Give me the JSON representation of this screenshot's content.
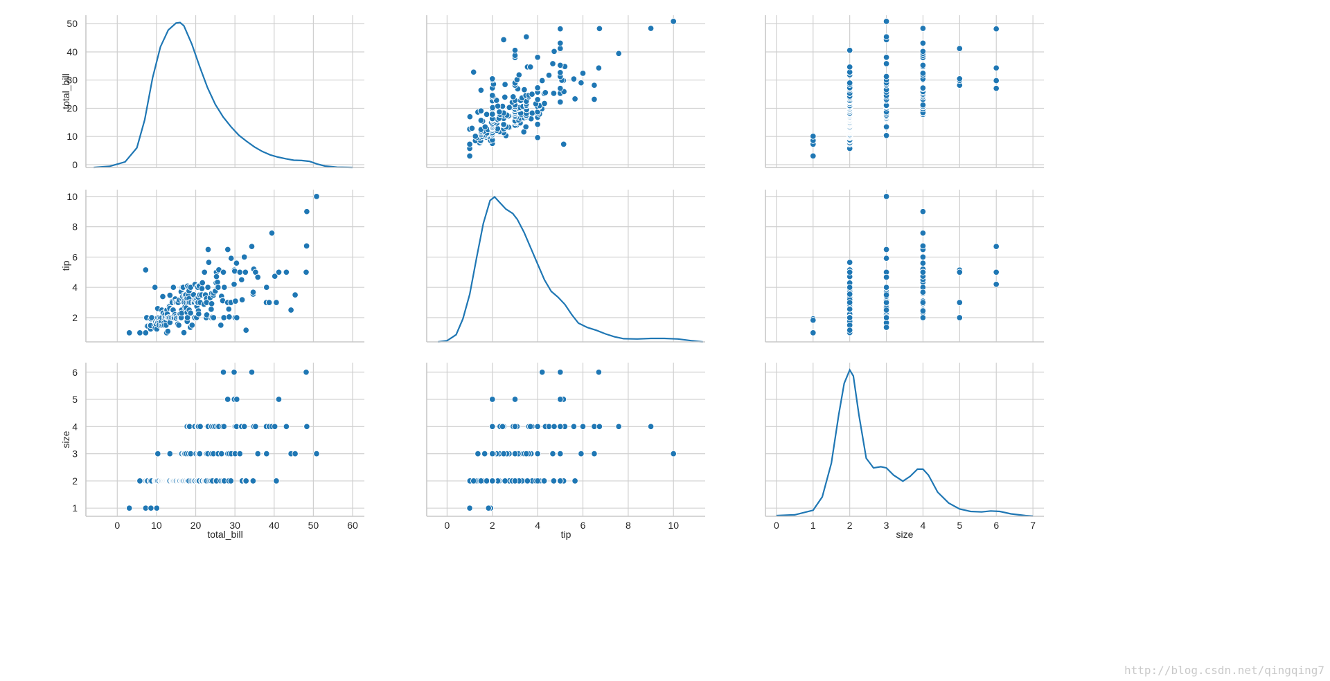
{
  "watermark": "http://blog.csdn.net/qingqing7",
  "chart_data": {
    "type": "pairplot",
    "variables": [
      "total_bill",
      "tip",
      "size"
    ],
    "color": "#1f77b4",
    "style": "whitegrid",
    "grid": true,
    "axes": {
      "total_bill": {
        "label": "total_bill",
        "lim": [
          -8,
          63
        ],
        "ticks": [
          0,
          10,
          20,
          30,
          40,
          50,
          60
        ]
      },
      "tip": {
        "label": "tip",
        "lim": [
          -0.9,
          11.4
        ],
        "ticks": [
          0,
          2,
          4,
          6,
          8,
          10
        ]
      },
      "size": {
        "label": "size",
        "lim": [
          -0.3,
          7.3
        ],
        "ticks": [
          0,
          1,
          2,
          3,
          4,
          5,
          6,
          7
        ]
      }
    },
    "row_axes": {
      "total_bill": {
        "label": "total_bill",
        "lim": [
          -1,
          53
        ],
        "ticks": [
          0,
          10,
          20,
          30,
          40,
          50
        ]
      },
      "tip": {
        "label": "tip",
        "lim": [
          0.4,
          10.45
        ],
        "ticks": [
          2,
          4,
          6,
          8,
          10
        ]
      },
      "size": {
        "label": "size",
        "lim": [
          0.7,
          6.35
        ],
        "ticks": [
          1,
          2,
          3,
          4,
          5,
          6
        ]
      }
    },
    "kde": {
      "total_bill": [
        [
          -6,
          0
        ],
        [
          -2,
          0.4
        ],
        [
          2,
          2
        ],
        [
          5,
          7
        ],
        [
          7,
          17
        ],
        [
          9,
          32
        ],
        [
          11,
          43
        ],
        [
          13,
          49
        ],
        [
          15,
          51.5
        ],
        [
          16,
          51.7
        ],
        [
          17,
          50.5
        ],
        [
          19,
          44
        ],
        [
          21,
          36
        ],
        [
          23,
          28.5
        ],
        [
          25,
          22.5
        ],
        [
          27,
          18
        ],
        [
          29,
          14.5
        ],
        [
          31,
          11.5
        ],
        [
          33,
          9.3
        ],
        [
          35,
          7.3
        ],
        [
          37,
          5.7
        ],
        [
          39,
          4.5
        ],
        [
          41,
          3.7
        ],
        [
          43,
          3.1
        ],
        [
          45,
          2.6
        ],
        [
          47,
          2.5
        ],
        [
          49,
          2.2
        ],
        [
          51,
          1.2
        ],
        [
          53,
          0.5
        ],
        [
          56,
          0.1
        ],
        [
          60,
          0
        ]
      ],
      "tip": [
        [
          -0.4,
          0
        ],
        [
          0,
          0.08
        ],
        [
          0.4,
          0.5
        ],
        [
          0.7,
          1.6
        ],
        [
          1.0,
          3.3
        ],
        [
          1.3,
          5.8
        ],
        [
          1.6,
          8.2
        ],
        [
          1.9,
          9.8
        ],
        [
          2.1,
          10.05
        ],
        [
          2.3,
          9.7
        ],
        [
          2.6,
          9.2
        ],
        [
          2.9,
          8.9
        ],
        [
          3.1,
          8.5
        ],
        [
          3.4,
          7.6
        ],
        [
          3.7,
          6.5
        ],
        [
          4.0,
          5.4
        ],
        [
          4.3,
          4.3
        ],
        [
          4.6,
          3.5
        ],
        [
          4.9,
          3.1
        ],
        [
          5.2,
          2.6
        ],
        [
          5.5,
          1.9
        ],
        [
          5.8,
          1.3
        ],
        [
          6.2,
          1.0
        ],
        [
          6.6,
          0.8
        ],
        [
          7.0,
          0.55
        ],
        [
          7.4,
          0.35
        ],
        [
          7.8,
          0.22
        ],
        [
          8.4,
          0.2
        ],
        [
          9.0,
          0.24
        ],
        [
          9.6,
          0.24
        ],
        [
          10.2,
          0.2
        ],
        [
          10.8,
          0.08
        ],
        [
          11.3,
          0
        ]
      ],
      "size": [
        [
          0,
          0.03
        ],
        [
          0.5,
          0.06
        ],
        [
          1.0,
          0.25
        ],
        [
          1.25,
          0.8
        ],
        [
          1.5,
          2.2
        ],
        [
          1.7,
          4.2
        ],
        [
          1.85,
          5.5
        ],
        [
          2.0,
          6.05
        ],
        [
          2.1,
          5.8
        ],
        [
          2.25,
          4.2
        ],
        [
          2.45,
          2.4
        ],
        [
          2.65,
          2.0
        ],
        [
          2.85,
          2.05
        ],
        [
          3.0,
          2.0
        ],
        [
          3.2,
          1.7
        ],
        [
          3.45,
          1.45
        ],
        [
          3.65,
          1.65
        ],
        [
          3.85,
          1.95
        ],
        [
          4.0,
          1.95
        ],
        [
          4.15,
          1.7
        ],
        [
          4.4,
          1.0
        ],
        [
          4.7,
          0.55
        ],
        [
          5.0,
          0.3
        ],
        [
          5.3,
          0.2
        ],
        [
          5.6,
          0.18
        ],
        [
          5.85,
          0.22
        ],
        [
          6.1,
          0.2
        ],
        [
          6.4,
          0.1
        ],
        [
          6.8,
          0.03
        ],
        [
          7.0,
          0.01
        ]
      ]
    },
    "points": [
      [
        3.07,
        1.0,
        1
      ],
      [
        5.75,
        1.0,
        2
      ],
      [
        7.25,
        1.0,
        1
      ],
      [
        7.25,
        5.15,
        2
      ],
      [
        7.51,
        2.0,
        2
      ],
      [
        7.56,
        1.44,
        2
      ],
      [
        7.74,
        1.44,
        2
      ],
      [
        8.35,
        1.5,
        2
      ],
      [
        8.51,
        1.25,
        2
      ],
      [
        8.52,
        1.48,
        2
      ],
      [
        8.58,
        1.92,
        1
      ],
      [
        8.77,
        2.0,
        2
      ],
      [
        9.55,
        1.45,
        2
      ],
      [
        9.6,
        4.0,
        2
      ],
      [
        9.68,
        1.32,
        2
      ],
      [
        9.78,
        1.73,
        2
      ],
      [
        9.94,
        1.56,
        2
      ],
      [
        10.07,
        1.25,
        2
      ],
      [
        10.07,
        1.83,
        1
      ],
      [
        10.27,
        1.71,
        2
      ],
      [
        10.29,
        2.6,
        2
      ],
      [
        10.33,
        1.67,
        3
      ],
      [
        10.34,
        1.66,
        3
      ],
      [
        10.34,
        2.0,
        2
      ],
      [
        10.59,
        1.61,
        2
      ],
      [
        10.63,
        2.0,
        2
      ],
      [
        10.65,
        1.5,
        2
      ],
      [
        11.02,
        1.98,
        2
      ],
      [
        11.17,
        1.5,
        2
      ],
      [
        11.24,
        1.76,
        2
      ],
      [
        11.35,
        2.5,
        2
      ],
      [
        11.38,
        2.0,
        2
      ],
      [
        11.59,
        1.5,
        2
      ],
      [
        11.61,
        3.39,
        2
      ],
      [
        11.69,
        2.31,
        2
      ],
      [
        11.87,
        1.63,
        2
      ],
      [
        12.02,
        1.97,
        2
      ],
      [
        12.03,
        1.5,
        2
      ],
      [
        12.16,
        2.2,
        2
      ],
      [
        12.26,
        2.0,
        2
      ],
      [
        12.43,
        1.8,
        2
      ],
      [
        12.46,
        1.5,
        2
      ],
      [
        12.54,
        2.5,
        2
      ],
      [
        12.6,
        1.0,
        2
      ],
      [
        12.66,
        2.5,
        2
      ],
      [
        12.69,
        2.0,
        2
      ],
      [
        12.74,
        2.01,
        2
      ],
      [
        12.76,
        2.23,
        2
      ],
      [
        12.9,
        1.1,
        2
      ],
      [
        13.0,
        2.0,
        2
      ],
      [
        13.03,
        2.0,
        2
      ],
      [
        13.13,
        2.0,
        2
      ],
      [
        13.16,
        2.75,
        2
      ],
      [
        13.28,
        2.72,
        2
      ],
      [
        13.37,
        2.0,
        2
      ],
      [
        13.39,
        2.61,
        2
      ],
      [
        13.42,
        3.48,
        3
      ],
      [
        13.42,
        1.68,
        2
      ],
      [
        13.81,
        2.0,
        2
      ],
      [
        13.94,
        3.06,
        2
      ],
      [
        14.0,
        3.0,
        2
      ],
      [
        14.07,
        2.5,
        2
      ],
      [
        14.15,
        2.0,
        2
      ],
      [
        14.26,
        2.5,
        2
      ],
      [
        14.31,
        4.0,
        2
      ],
      [
        14.48,
        2.0,
        2
      ],
      [
        14.52,
        2.0,
        2
      ],
      [
        14.73,
        2.2,
        2
      ],
      [
        14.78,
        3.23,
        2
      ],
      [
        14.83,
        3.02,
        2
      ],
      [
        15.01,
        2.09,
        2
      ],
      [
        15.04,
        1.96,
        2
      ],
      [
        15.06,
        3.0,
        2
      ],
      [
        15.38,
        3.0,
        2
      ],
      [
        15.42,
        1.57,
        2
      ],
      [
        15.48,
        2.02,
        2
      ],
      [
        15.53,
        3.0,
        2
      ],
      [
        15.69,
        1.5,
        2
      ],
      [
        15.77,
        2.23,
        2
      ],
      [
        15.81,
        3.16,
        2
      ],
      [
        15.95,
        2.0,
        2
      ],
      [
        16.0,
        2.0,
        2
      ],
      [
        16.04,
        2.24,
        3
      ],
      [
        16.21,
        2.0,
        3
      ],
      [
        16.27,
        2.5,
        2
      ],
      [
        16.29,
        3.71,
        3
      ],
      [
        16.31,
        2.0,
        3
      ],
      [
        16.4,
        2.5,
        2
      ],
      [
        16.43,
        2.3,
        2
      ],
      [
        16.47,
        3.23,
        3
      ],
      [
        16.58,
        4.0,
        2
      ],
      [
        16.66,
        3.4,
        2
      ],
      [
        16.82,
        4.0,
        2
      ],
      [
        16.93,
        3.07,
        3
      ],
      [
        16.97,
        3.5,
        3
      ],
      [
        16.99,
        1.01,
        2
      ],
      [
        17.07,
        3.0,
        3
      ],
      [
        17.26,
        2.74,
        3
      ],
      [
        17.29,
        2.71,
        2
      ],
      [
        17.31,
        3.5,
        2
      ],
      [
        17.46,
        2.54,
        2
      ],
      [
        17.47,
        3.5,
        2
      ],
      [
        17.51,
        3.0,
        2
      ],
      [
        17.59,
        2.64,
        3
      ],
      [
        17.78,
        3.27,
        2
      ],
      [
        17.81,
        2.34,
        4
      ],
      [
        17.82,
        1.75,
        2
      ],
      [
        17.89,
        2.0,
        2
      ],
      [
        17.92,
        4.08,
        2
      ],
      [
        18.04,
        3.0,
        2
      ],
      [
        18.15,
        3.5,
        3
      ],
      [
        18.24,
        3.76,
        2
      ],
      [
        18.26,
        3.25,
        2
      ],
      [
        18.28,
        4.0,
        2
      ],
      [
        18.29,
        3.76,
        4
      ],
      [
        18.35,
        2.5,
        4
      ],
      [
        18.43,
        3.0,
        4
      ],
      [
        18.64,
        1.36,
        3
      ],
      [
        18.69,
        2.31,
        3
      ],
      [
        18.71,
        4.0,
        3
      ],
      [
        18.78,
        3.0,
        2
      ],
      [
        19.08,
        1.5,
        2
      ],
      [
        19.44,
        3.0,
        2
      ],
      [
        19.49,
        3.51,
        2
      ],
      [
        19.65,
        3.0,
        2
      ],
      [
        19.77,
        2.0,
        4
      ],
      [
        19.81,
        4.19,
        2
      ],
      [
        19.82,
        3.18,
        2
      ],
      [
        20.08,
        3.15,
        3
      ],
      [
        20.23,
        2.01,
        2
      ],
      [
        20.27,
        2.83,
        2
      ],
      [
        20.29,
        2.75,
        2
      ],
      [
        20.29,
        3.21,
        2
      ],
      [
        20.45,
        3.0,
        4
      ],
      [
        20.49,
        4.06,
        2
      ],
      [
        20.53,
        4.0,
        4
      ],
      [
        20.58,
        3.0,
        3
      ],
      [
        20.65,
        3.35,
        3
      ],
      [
        20.69,
        2.45,
        4
      ],
      [
        20.76,
        2.24,
        2
      ],
      [
        20.9,
        3.5,
        3
      ],
      [
        20.92,
        4.08,
        2
      ],
      [
        21.01,
        3.5,
        3
      ],
      [
        21.16,
        3.0,
        4
      ],
      [
        21.5,
        3.5,
        2
      ],
      [
        21.58,
        3.92,
        2
      ],
      [
        21.7,
        4.3,
        2
      ],
      [
        22.12,
        2.88,
        2
      ],
      [
        22.23,
        5.0,
        2
      ],
      [
        22.42,
        3.48,
        2
      ],
      [
        22.49,
        3.5,
        2
      ],
      [
        22.67,
        2.0,
        2
      ],
      [
        22.75,
        3.25,
        2
      ],
      [
        22.76,
        3.0,
        2
      ],
      [
        22.82,
        2.18,
        3
      ],
      [
        23.1,
        4.0,
        3
      ],
      [
        23.17,
        6.5,
        4
      ],
      [
        23.33,
        5.65,
        2
      ],
      [
        23.68,
        3.31,
        2
      ],
      [
        23.95,
        2.55,
        2
      ],
      [
        24.01,
        2.0,
        4
      ],
      [
        24.06,
        3.6,
        3
      ],
      [
        24.08,
        2.92,
        4
      ],
      [
        24.27,
        2.03,
        2
      ],
      [
        24.52,
        3.48,
        3
      ],
      [
        24.55,
        2.0,
        4
      ],
      [
        24.59,
        3.61,
        4
      ],
      [
        25.0,
        3.75,
        4
      ],
      [
        25.21,
        4.29,
        2
      ],
      [
        25.28,
        5.0,
        2
      ],
      [
        25.29,
        4.71,
        2
      ],
      [
        25.56,
        4.34,
        4
      ],
      [
        25.71,
        4.0,
        3
      ],
      [
        25.89,
        5.16,
        4
      ],
      [
        26.41,
        1.5,
        2
      ],
      [
        26.59,
        3.41,
        3
      ],
      [
        26.86,
        3.14,
        2
      ],
      [
        26.88,
        3.12,
        4
      ],
      [
        27.05,
        5.0,
        6
      ],
      [
        27.18,
        2.0,
        2
      ],
      [
        27.2,
        4.0,
        4
      ],
      [
        27.28,
        4.0,
        2
      ],
      [
        28.15,
        3.0,
        5
      ],
      [
        28.17,
        6.5,
        3
      ],
      [
        28.44,
        2.56,
        2
      ],
      [
        28.55,
        2.05,
        3
      ],
      [
        28.97,
        3.0,
        2
      ],
      [
        29.03,
        5.92,
        3
      ],
      [
        29.8,
        4.2,
        6
      ],
      [
        29.85,
        5.14,
        5
      ],
      [
        29.93,
        5.07,
        4
      ],
      [
        30.06,
        2.0,
        3
      ],
      [
        30.14,
        3.09,
        4
      ],
      [
        30.4,
        5.6,
        4
      ],
      [
        30.46,
        2.0,
        5
      ],
      [
        31.27,
        5.0,
        3
      ],
      [
        31.71,
        4.5,
        4
      ],
      [
        31.85,
        3.18,
        2
      ],
      [
        32.4,
        6.0,
        4
      ],
      [
        32.68,
        5.0,
        2
      ],
      [
        32.83,
        1.17,
        2
      ],
      [
        34.3,
        6.7,
        6
      ],
      [
        34.63,
        3.55,
        2
      ],
      [
        34.65,
        3.68,
        4
      ],
      [
        34.81,
        5.2,
        4
      ],
      [
        35.26,
        5.0,
        4
      ],
      [
        35.83,
        4.67,
        3
      ],
      [
        38.01,
        3.0,
        4
      ],
      [
        38.07,
        4.0,
        3
      ],
      [
        38.73,
        3.0,
        4
      ],
      [
        39.42,
        7.58,
        4
      ],
      [
        40.17,
        4.73,
        4
      ],
      [
        40.55,
        3.0,
        2
      ],
      [
        41.19,
        5.0,
        5
      ],
      [
        43.11,
        5.0,
        4
      ],
      [
        44.3,
        2.5,
        3
      ],
      [
        45.35,
        3.5,
        3
      ],
      [
        48.17,
        5.0,
        6
      ],
      [
        48.27,
        6.73,
        4
      ],
      [
        48.33,
        9.0,
        4
      ],
      [
        50.81,
        10.0,
        3
      ]
    ]
  }
}
